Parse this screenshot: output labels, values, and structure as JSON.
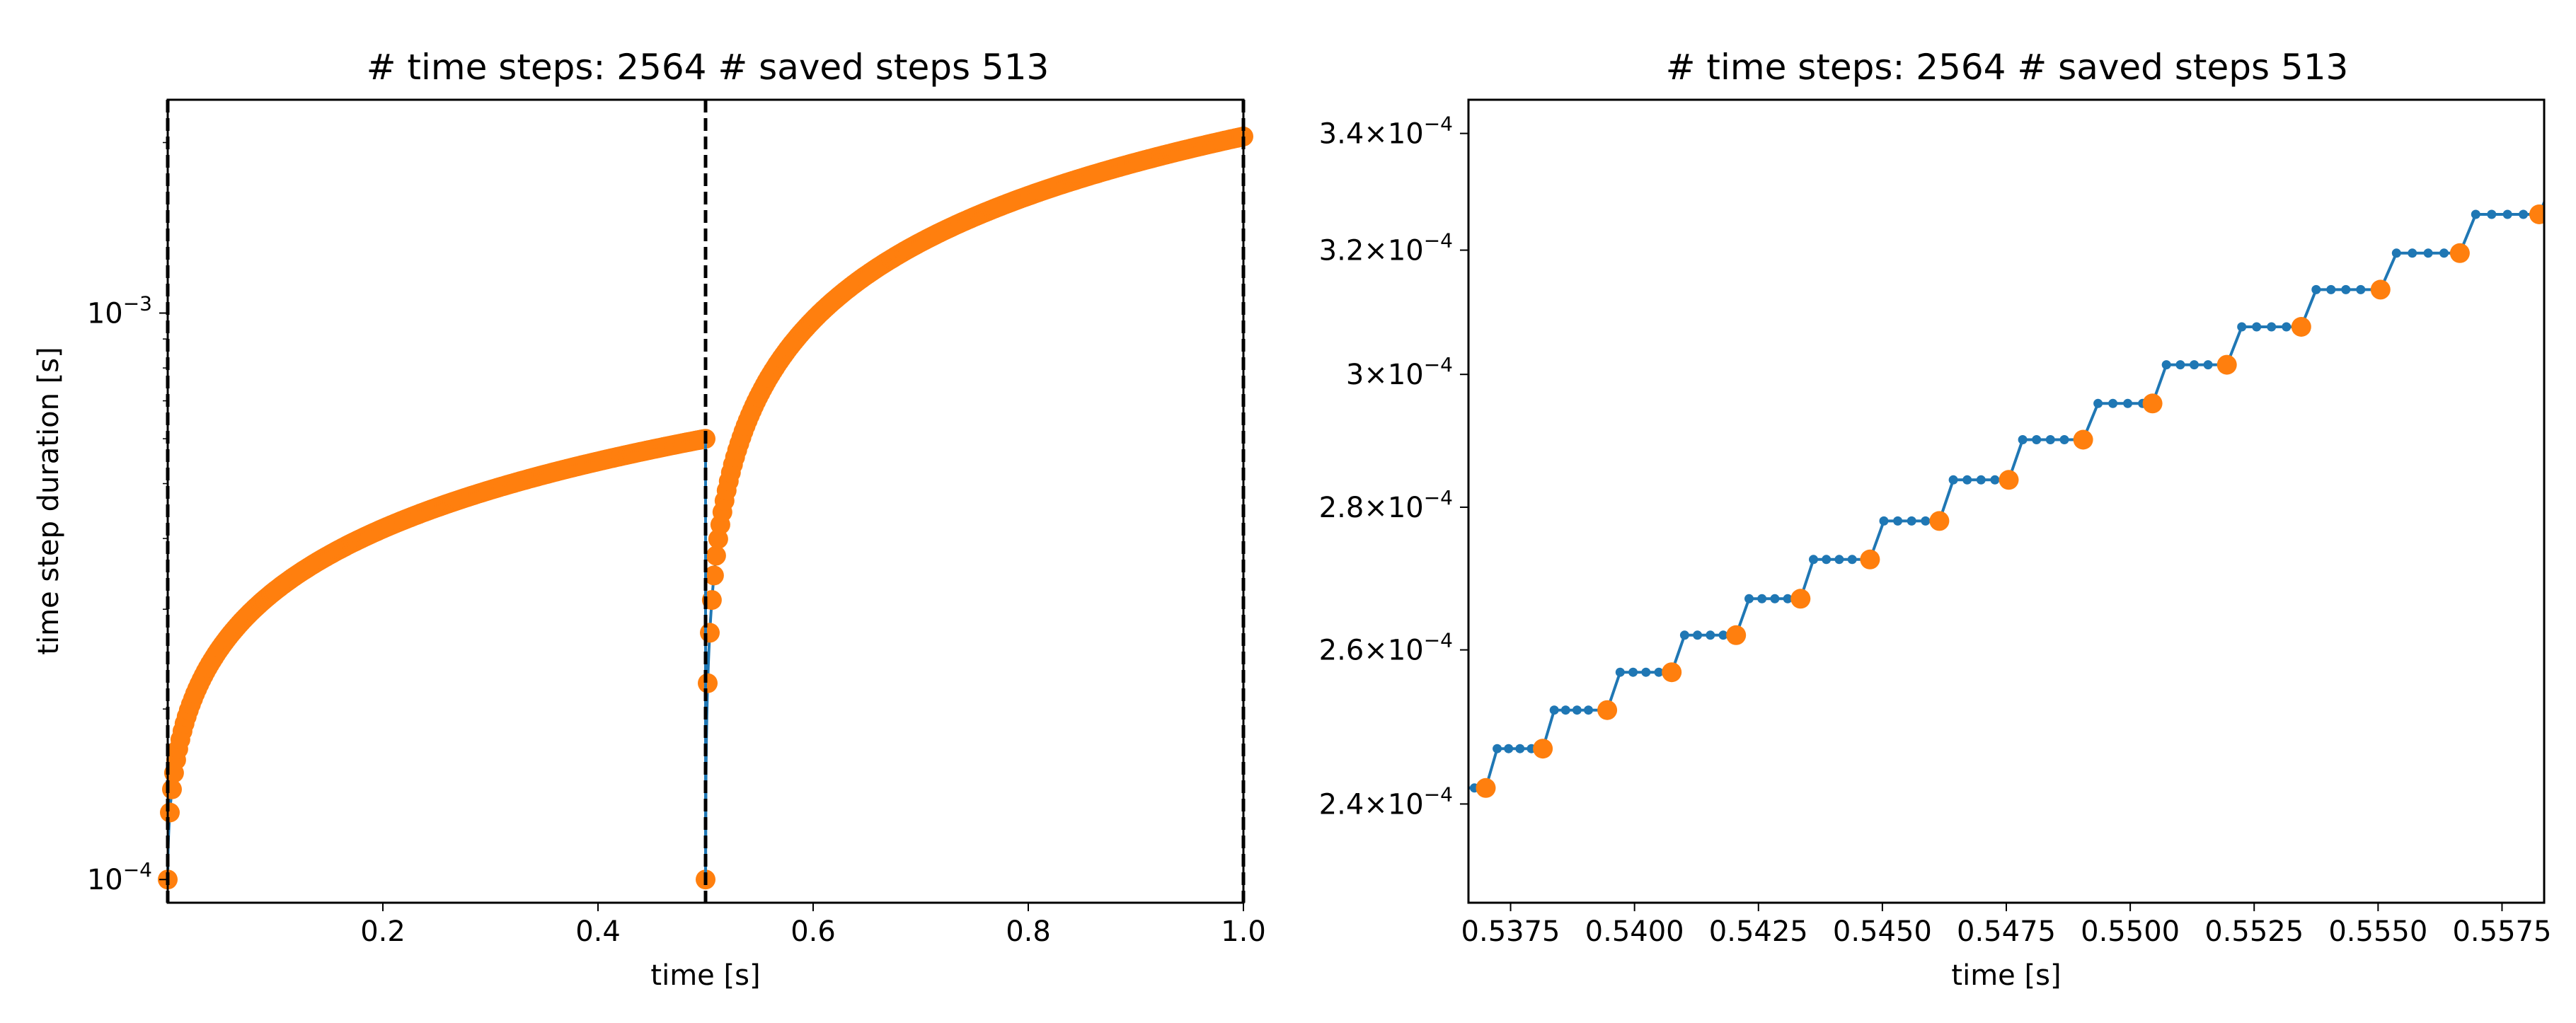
{
  "chart_data": [
    {
      "type": "scatter",
      "title": "# time steps: 2564   # saved steps 513",
      "xlabel": "time [s]",
      "ylabel": "time step duration [s]",
      "xlim": [
        0.0,
        1.0
      ],
      "ylim": [
        9.1e-05,
        0.00238
      ],
      "yscale": "log",
      "xticks": [
        0.2,
        0.4,
        0.6,
        0.8,
        1.0
      ],
      "xtick_labels": [
        "0.2",
        "0.4",
        "0.6",
        "0.8",
        "1.0"
      ],
      "yticks_major": [
        {
          "value": 0.0001,
          "base": "10",
          "exp": "−4"
        },
        {
          "value": 0.001,
          "base": "10",
          "exp": "−3"
        }
      ],
      "vlines": [
        0.0,
        0.5,
        1.0
      ],
      "series": [
        {
          "color": "#1f77b4",
          "style": "line",
          "n_points": 2564,
          "segments": [
            {
              "t0": 0.0,
              "t1": 0.5,
              "dt0": 0.0001,
              "dt1": 0.0006
            },
            {
              "t0": 0.5,
              "t1": 1.0,
              "dt0": 0.0001,
              "dt1": 0.00205
            }
          ]
        },
        {
          "color": "#ff7f0e",
          "style": "markers",
          "n_points": 513,
          "segments": [
            {
              "t0": 0.0,
              "t1": 0.5,
              "dt0": 0.0001,
              "dt1": 0.0006
            },
            {
              "t0": 0.5,
              "t1": 1.0,
              "dt0": 0.0001,
              "dt1": 0.00205
            }
          ]
        }
      ],
      "grid": false
    },
    {
      "type": "line",
      "title": "# time steps: 2564   # saved steps 513",
      "xlabel": "time [s]",
      "ylabel": "",
      "xlim": [
        0.53665,
        0.55835
      ],
      "ylim": [
        0.000228,
        0.000346
      ],
      "yscale": "log",
      "xticks": [
        0.5375,
        0.54,
        0.5425,
        0.545,
        0.5475,
        0.55,
        0.5525,
        0.555,
        0.5575
      ],
      "xtick_labels": [
        "0.5375",
        "0.5400",
        "0.5425",
        "0.5450",
        "0.5475",
        "0.5500",
        "0.5525",
        "0.5550",
        "0.5575"
      ],
      "yticks": [
        {
          "value": 0.00024,
          "mant": "2.4",
          "base": "10",
          "exp": "−4"
        },
        {
          "value": 0.00026,
          "mant": "2.6",
          "base": "10",
          "exp": "−4"
        },
        {
          "value": 0.00028,
          "mant": "2.8",
          "base": "10",
          "exp": "−4"
        },
        {
          "value": 0.0003,
          "mant": "3",
          "base": "10",
          "exp": "−4"
        },
        {
          "value": 0.00032,
          "mant": "3.2",
          "base": "10",
          "exp": "−4"
        },
        {
          "value": 0.00034,
          "mant": "3.4",
          "base": "10",
          "exp": "−4"
        }
      ],
      "step_levels": [
        0.000242,
        0.000247,
        0.000252,
        0.000257,
        0.000262,
        0.000267,
        0.0002725,
        0.000278,
        0.000284,
        0.00029,
        0.0002955,
        0.0003015,
        0.0003075,
        0.0003135,
        0.0003195,
        0.000326
      ],
      "saved_times": [
        0.537,
        0.53815,
        0.53945,
        0.54075,
        0.54205,
        0.54335,
        0.54475,
        0.54615,
        0.54755,
        0.54905,
        0.55045,
        0.55195,
        0.55345,
        0.55505,
        0.55665,
        0.55825
      ],
      "series": [
        {
          "name": "",
          "color": "#1f77b4",
          "style": "line+dots"
        },
        {
          "name": "",
          "color": "#ff7f0e",
          "style": "markers"
        }
      ],
      "grid": false
    }
  ]
}
